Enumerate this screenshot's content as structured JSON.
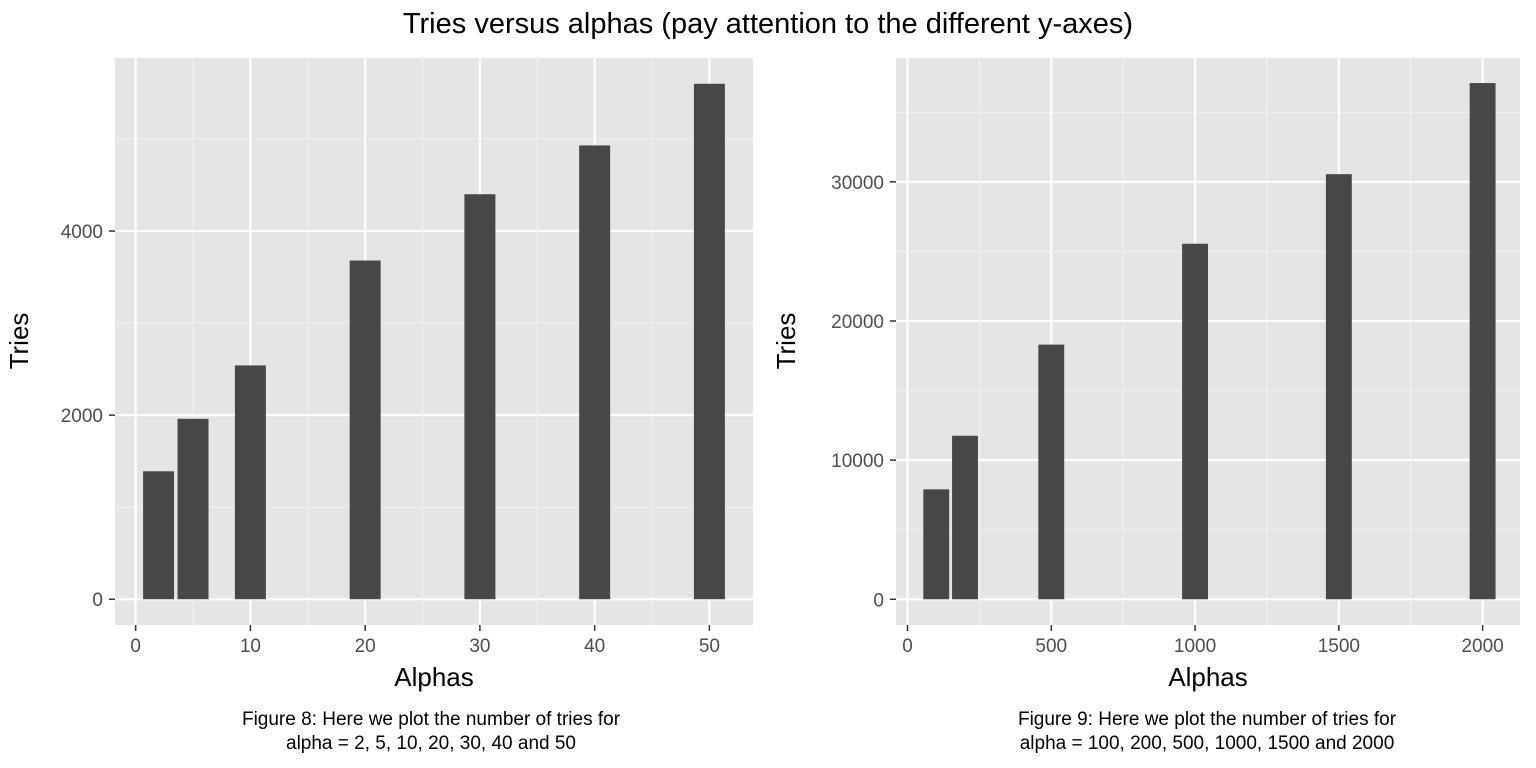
{
  "title": "Tries versus alphas (pay attention to the different y-axes)",
  "chart_data": [
    {
      "type": "bar",
      "x": [
        2,
        5,
        10,
        20,
        30,
        40,
        50
      ],
      "values": [
        1390,
        1960,
        2540,
        3680,
        4400,
        4930,
        5600
      ],
      "xlabel": "Alphas",
      "ylabel": "Tries",
      "xlim": [
        -1.8,
        53.8
      ],
      "ylim": [
        -280,
        5880
      ],
      "xticks": [
        0,
        10,
        20,
        30,
        40,
        50
      ],
      "xtick_labels": [
        "0",
        "10",
        "20",
        "30",
        "40",
        "50"
      ],
      "yticks": [
        0,
        2000,
        4000
      ],
      "ytick_labels": [
        "0",
        "2000",
        "4000"
      ],
      "bar_width": 2.7,
      "bar_color": "#474747",
      "panel_background": "#e5e5e5",
      "grid": true,
      "caption": [
        "Figure 8: Here we plot the number of tries for",
        "alpha = 2, 5, 10, 20, 30, 40 and 50"
      ]
    },
    {
      "type": "bar",
      "x": [
        100,
        200,
        500,
        1000,
        1500,
        2000
      ],
      "values": [
        7900,
        11750,
        18300,
        25550,
        30550,
        37100
      ],
      "xlabel": "Alphas",
      "ylabel": "Tries",
      "xlim": [
        -40,
        2130
      ],
      "ylim": [
        -1850,
        38900
      ],
      "xticks": [
        0,
        500,
        1000,
        1500,
        2000
      ],
      "xtick_labels": [
        "0",
        "500",
        "1000",
        "1500",
        "2000"
      ],
      "yticks": [
        0,
        10000,
        20000,
        30000
      ],
      "ytick_labels": [
        "0",
        "10000",
        "20000",
        "30000"
      ],
      "bar_width": 90,
      "bar_color": "#474747",
      "panel_background": "#e5e5e5",
      "grid": true,
      "caption": [
        "Figure 9: Here we plot the number of tries for",
        "alpha = 100, 200, 500, 1000, 1500 and 2000"
      ]
    }
  ]
}
